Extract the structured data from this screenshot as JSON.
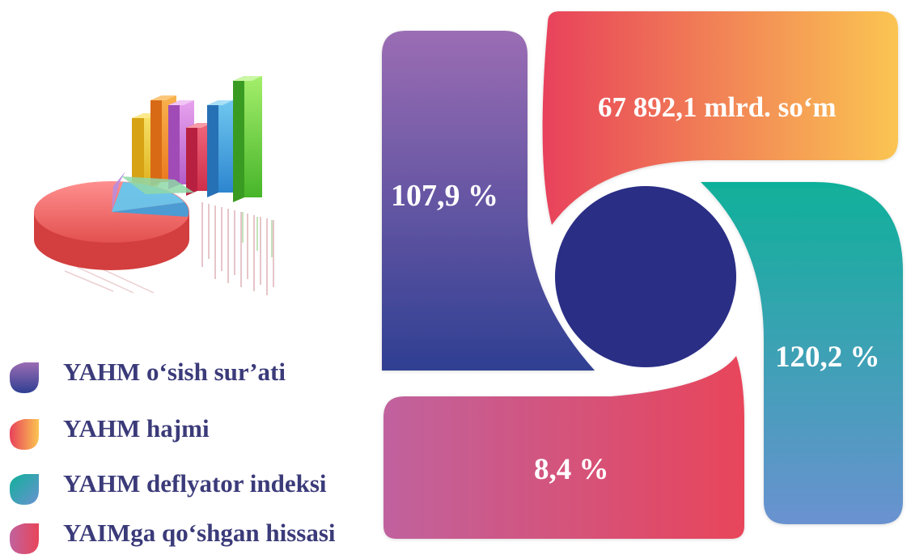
{
  "panels": {
    "growth": {
      "value": "107,9 %",
      "colors": [
        "#9b6db4",
        "#2f3f92"
      ]
    },
    "volume": {
      "value": "67 892,1 mlrd. so‘m",
      "colors": [
        "#e8415b",
        "#fbc551"
      ]
    },
    "deflator": {
      "value": "120,2 %",
      "colors": [
        "#10b09a",
        "#6a92d0"
      ]
    },
    "share": {
      "value": "8,4 %",
      "colors": [
        "#c0629e",
        "#e8455a"
      ]
    },
    "center_color": "#2a2e85"
  },
  "legend": [
    {
      "label": "YAHM o‘sish sur’ati",
      "icon": "purple-blue-leaf-icon",
      "colors": [
        "#9b6db4",
        "#2f3f92"
      ]
    },
    {
      "label": "YAHM hajmi",
      "icon": "red-orange-leaf-icon",
      "colors": [
        "#e8415b",
        "#fbc551"
      ]
    },
    {
      "label": "YAHM  deflyator indeksi",
      "icon": "teal-blue-leaf-icon",
      "colors": [
        "#10b09a",
        "#6a92d0"
      ]
    },
    {
      "label": "YAIMga qo‘shgan hissasi",
      "icon": "pink-red-leaf-icon",
      "colors": [
        "#c0629e",
        "#e8455a"
      ]
    }
  ],
  "illustration": {
    "icon": "bar-and-pie-chart-icon"
  }
}
